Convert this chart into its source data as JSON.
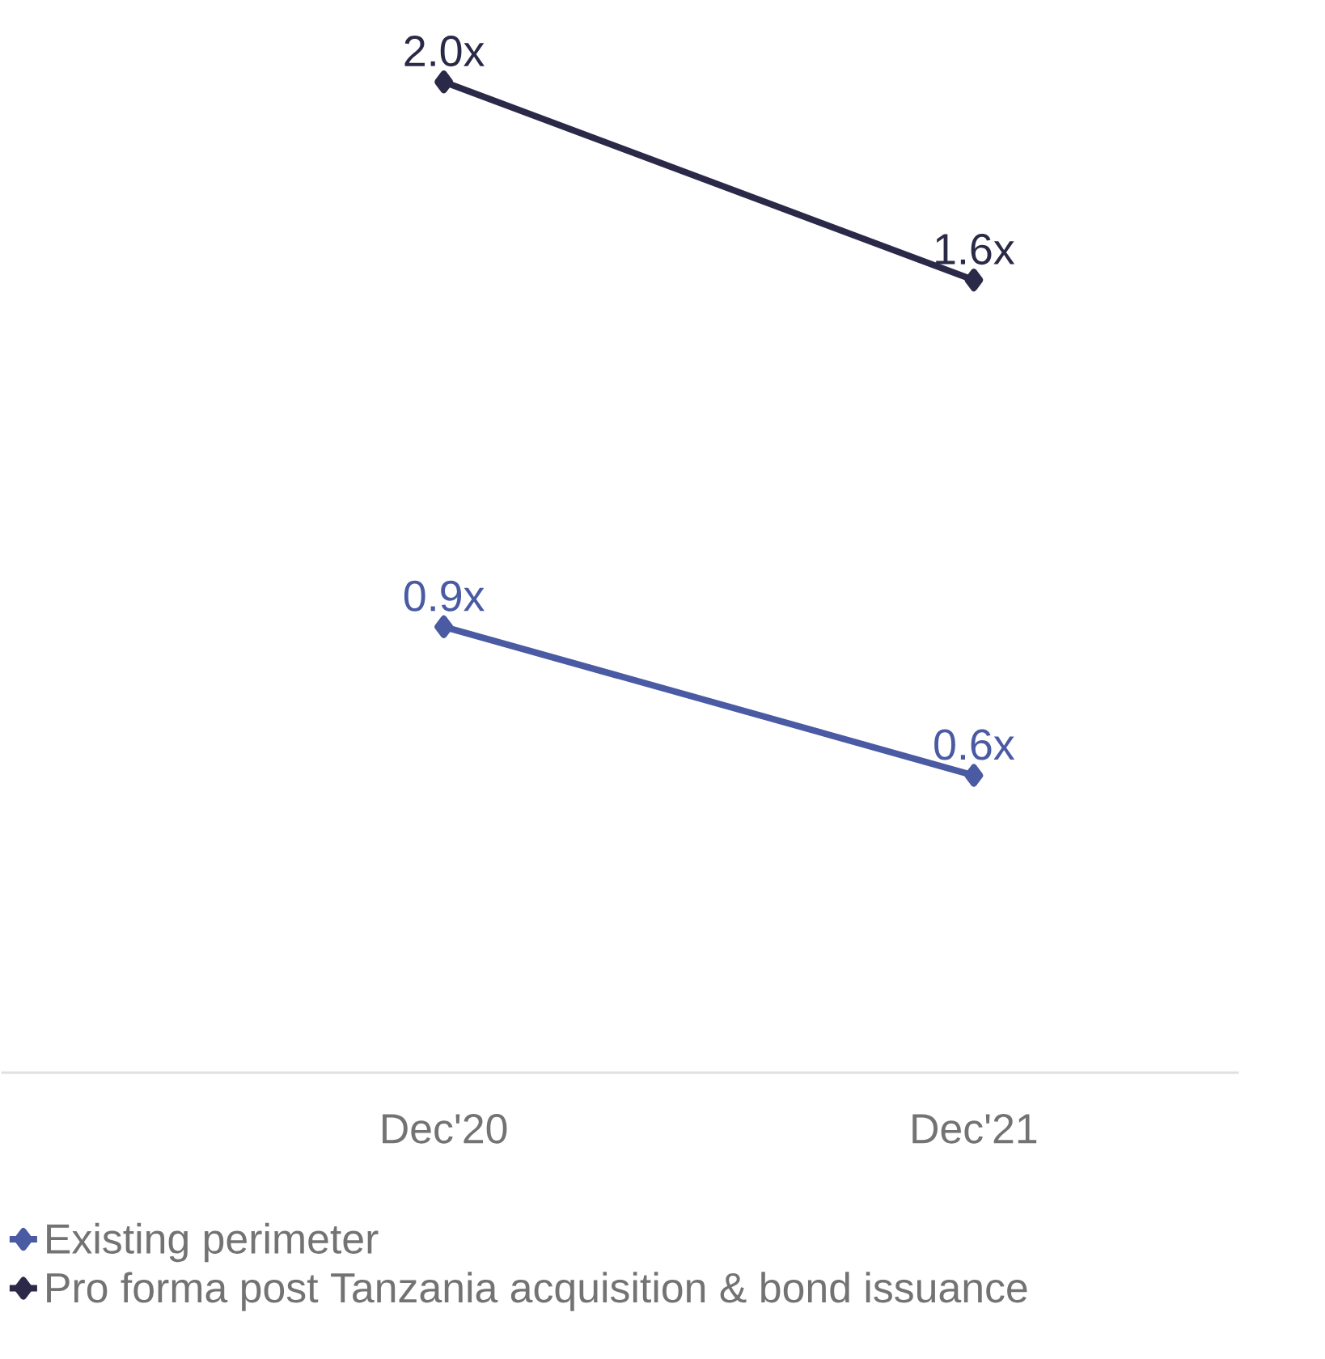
{
  "chart_data": {
    "type": "line",
    "categories": [
      "Dec'20",
      "Dec'21"
    ],
    "series": [
      {
        "name": "Existing perimeter",
        "color": "#4a5aa3",
        "values": [
          0.9,
          0.6
        ],
        "value_labels": [
          "0.9x",
          "0.6x"
        ]
      },
      {
        "name": "Pro forma post Tanzania acquisition & bond issuance",
        "color": "#2a2a48",
        "values": [
          2.0,
          1.6
        ],
        "value_labels": [
          "2.0x",
          "1.6x"
        ]
      }
    ],
    "marker": "diamond",
    "legend": "bottom",
    "grid": false,
    "tick_labels": "x"
  }
}
